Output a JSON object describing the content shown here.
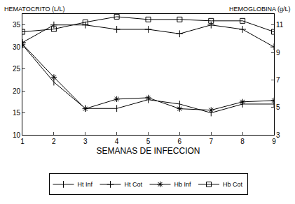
{
  "chart_data": {
    "type": "line",
    "ylabel": "HEMATOCRITO (L/L)",
    "y2label": "HEMOGLOBINA (g/L)",
    "xlabel": "SEMANAS DE INFECCION",
    "x": [
      1,
      2,
      3,
      4,
      5,
      6,
      7,
      8,
      9
    ],
    "xlim": [
      1,
      9
    ],
    "xticks": [
      1,
      2,
      3,
      4,
      5,
      6,
      7,
      8,
      9
    ],
    "ylim": [
      10,
      37.5
    ],
    "yticks": [
      10,
      15,
      20,
      25,
      30,
      35
    ],
    "y2lim": [
      3,
      11.8
    ],
    "y2ticks": [
      3,
      5,
      7,
      9,
      11
    ],
    "grid": false,
    "legend": "bottom",
    "series": [
      {
        "name": "Ht Inf",
        "color": "#000000",
        "marker": "line-ns",
        "line_style": "solid",
        "values": [
          30.5,
          22,
          16,
          16,
          18,
          17,
          15,
          17,
          17
        ]
      },
      {
        "name": "Ht Cot",
        "color": "#000000",
        "marker": "cross-thin",
        "line_style": "solid",
        "values": [
          31,
          35,
          35,
          34,
          34,
          33,
          35,
          34,
          30
        ]
      },
      {
        "name": "Hb Inf",
        "color": "#000000",
        "marker": "asterisk",
        "line_style": "solid",
        "axis": "y2",
        "values": [
          9.6,
          7.2,
          4.9,
          5.6,
          5.7,
          4.9,
          4.8,
          5.4,
          5.5
        ]
      },
      {
        "name": "Hb Cot",
        "color": "#000000",
        "marker": "square-open",
        "line_style": "solid",
        "axis": "y2",
        "values": [
          10.5,
          10.7,
          11.2,
          11.6,
          11.4,
          11.4,
          11.3,
          11.3,
          10.5
        ]
      }
    ]
  }
}
